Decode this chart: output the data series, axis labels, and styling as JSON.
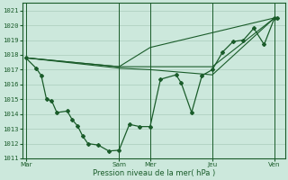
{
  "xlabel": "Pression niveau de la mer( hPa )",
  "background_color": "#cce8dc",
  "grid_color": "#aaccbb",
  "line_color": "#1a5c2a",
  "ylim": [
    1011,
    1021.5
  ],
  "yticks": [
    1011,
    1012,
    1013,
    1014,
    1015,
    1016,
    1017,
    1018,
    1019,
    1020,
    1021
  ],
  "xtick_labels": [
    "Mar",
    "",
    "Sam",
    "Mer",
    "",
    "Jeu",
    "",
    "Ven"
  ],
  "xtick_positions": [
    0,
    3,
    9,
    12,
    15,
    18,
    21,
    24
  ],
  "vline_positions": [
    0,
    9,
    12,
    18,
    24
  ],
  "xlim": [
    -0.3,
    25
  ],
  "line1_x": [
    0,
    1,
    1.5,
    2,
    2.5,
    3,
    4,
    4.5,
    5,
    5.5,
    6,
    7,
    8,
    9,
    10,
    11,
    12,
    13,
    14.5,
    15,
    16,
    17,
    18,
    19,
    20,
    21,
    22,
    23,
    24,
    24.3
  ],
  "line1_y": [
    1017.8,
    1017.1,
    1016.6,
    1015.0,
    1014.9,
    1014.1,
    1014.2,
    1013.6,
    1013.2,
    1012.5,
    1012.0,
    1011.9,
    1011.5,
    1011.55,
    1013.3,
    1013.15,
    1013.15,
    1016.35,
    1016.65,
    1016.1,
    1014.1,
    1016.6,
    1017.0,
    1018.2,
    1018.9,
    1019.0,
    1019.8,
    1018.7,
    1020.5,
    1020.5
  ],
  "line2_x": [
    0,
    9,
    12,
    18,
    24
  ],
  "line2_y": [
    1017.8,
    1017.2,
    1017.2,
    1017.2,
    1020.5
  ],
  "line3_x": [
    0,
    9,
    12,
    18,
    24
  ],
  "line3_y": [
    1017.8,
    1017.1,
    1017.0,
    1016.65,
    1020.5
  ],
  "line4_x": [
    0,
    9,
    12,
    18,
    24
  ],
  "line4_y": [
    1017.8,
    1017.2,
    1018.5,
    1019.5,
    1020.5
  ]
}
